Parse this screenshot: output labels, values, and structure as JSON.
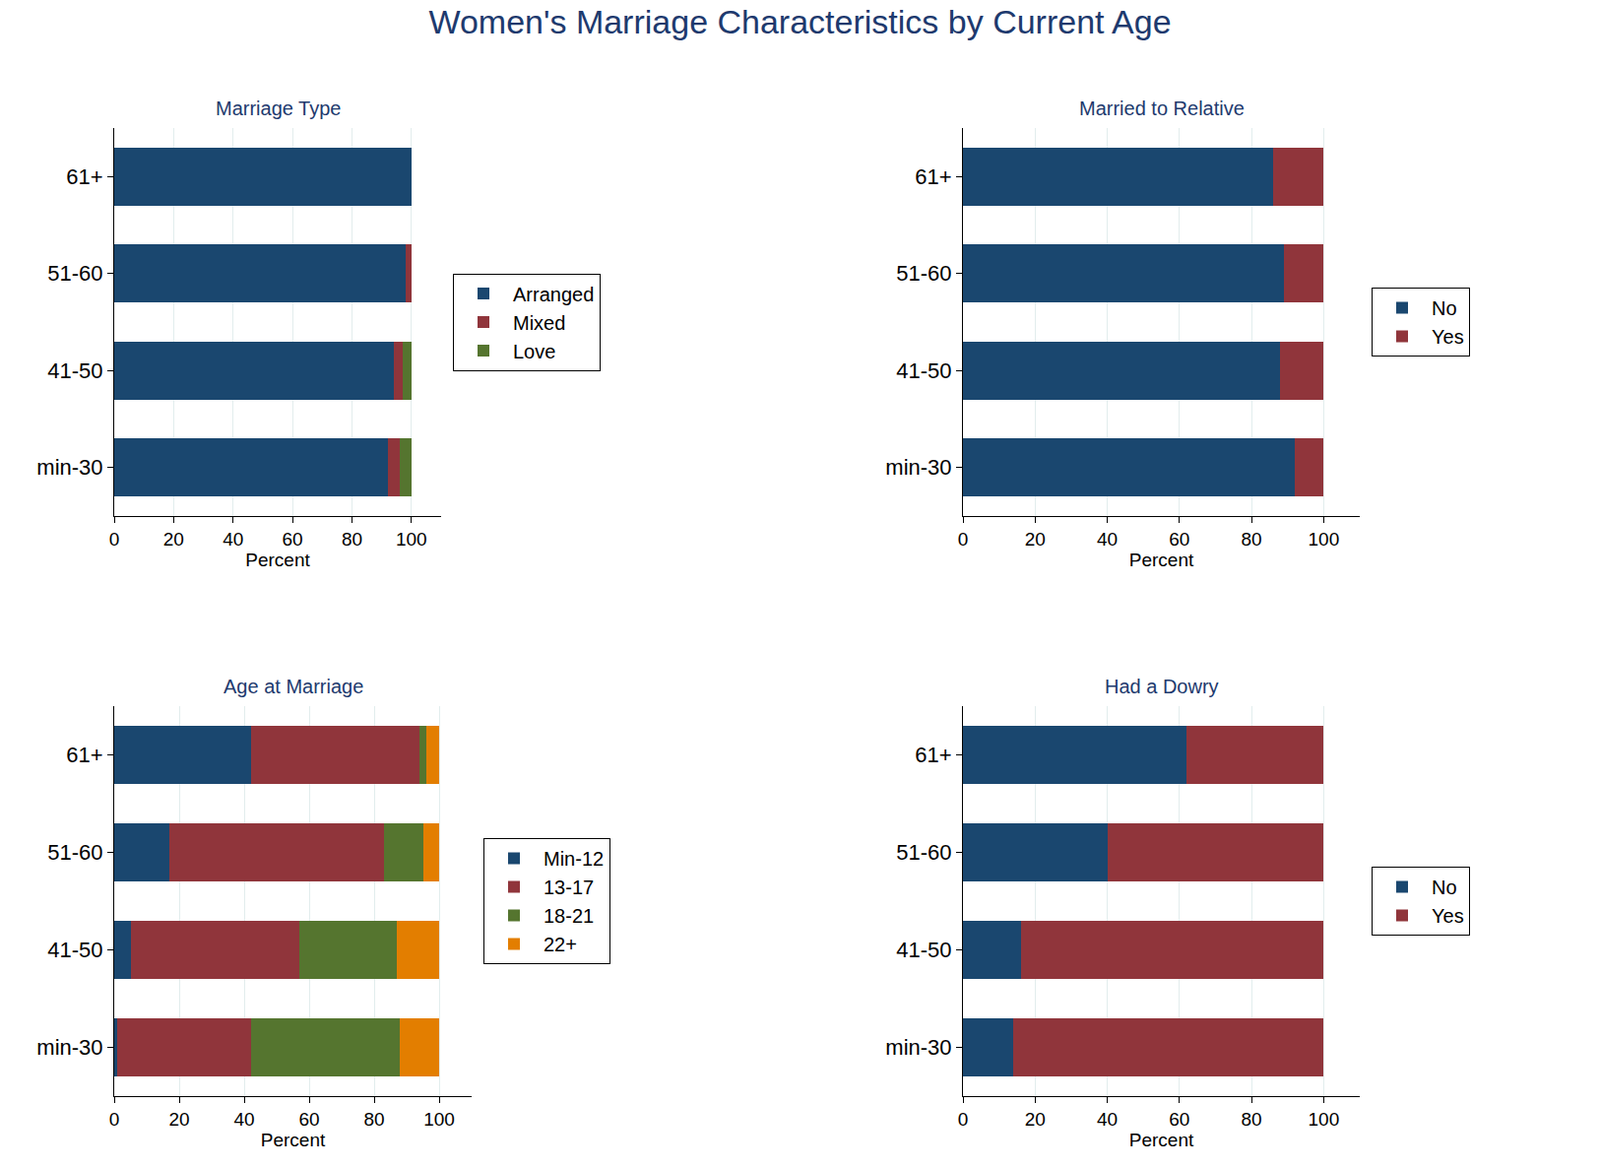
{
  "title": "Women's Marriage Characteristics by Current Age",
  "chart_data": [
    {
      "type": "bar",
      "title": "Marriage Type",
      "orientation": "horizontal",
      "stacked": true,
      "categories": [
        "61+",
        "51-60",
        "41-50",
        "min-30"
      ],
      "series": [
        {
          "name": "Arranged",
          "color": "#1a476f",
          "values": [
            100,
            98,
            94,
            92
          ]
        },
        {
          "name": "Mixed",
          "color": "#90353b",
          "values": [
            0,
            2,
            3,
            4
          ]
        },
        {
          "name": "Love",
          "color": "#55752f",
          "values": [
            0,
            0,
            3,
            4
          ]
        }
      ],
      "xlabel": "Percent",
      "xlim": [
        0,
        110
      ],
      "xticks": [
        0,
        20,
        40,
        60,
        80,
        100
      ],
      "grid": true,
      "legend": "right"
    },
    {
      "type": "bar",
      "title": "Married to Relative",
      "orientation": "horizontal",
      "stacked": true,
      "categories": [
        "61+",
        "51-60",
        "41-50",
        "min-30"
      ],
      "series": [
        {
          "name": "No",
          "color": "#1a476f",
          "values": [
            86,
            89,
            88,
            92
          ]
        },
        {
          "name": "Yes",
          "color": "#90353b",
          "values": [
            14,
            11,
            12,
            8
          ]
        }
      ],
      "xlabel": "Percent",
      "xlim": [
        0,
        110
      ],
      "xticks": [
        0,
        20,
        40,
        60,
        80,
        100
      ],
      "grid": true,
      "legend": "right"
    },
    {
      "type": "bar",
      "title": "Age at Marriage",
      "orientation": "horizontal",
      "stacked": true,
      "categories": [
        "61+",
        "51-60",
        "41-50",
        "min-30"
      ],
      "series": [
        {
          "name": "Min-12",
          "color": "#1a476f",
          "values": [
            42,
            17,
            5,
            1
          ]
        },
        {
          "name": "13-17",
          "color": "#90353b",
          "values": [
            52,
            66,
            52,
            41
          ]
        },
        {
          "name": "18-21",
          "color": "#55752f",
          "values": [
            2,
            12,
            30,
            46
          ]
        },
        {
          "name": "22+",
          "color": "#e37e00",
          "values": [
            4,
            5,
            13,
            12
          ]
        }
      ],
      "xlabel": "Percent",
      "xlim": [
        0,
        110
      ],
      "xticks": [
        0,
        20,
        40,
        60,
        80,
        100
      ],
      "grid": true,
      "legend": "right"
    },
    {
      "type": "bar",
      "title": "Had a Dowry",
      "orientation": "horizontal",
      "stacked": true,
      "categories": [
        "61+",
        "51-60",
        "41-50",
        "min-30"
      ],
      "series": [
        {
          "name": "No",
          "color": "#1a476f",
          "values": [
            62,
            40,
            16,
            14
          ]
        },
        {
          "name": "Yes",
          "color": "#90353b",
          "values": [
            38,
            60,
            84,
            86
          ]
        }
      ],
      "xlabel": "Percent",
      "xlim": [
        0,
        110
      ],
      "xticks": [
        0,
        20,
        40,
        60,
        80,
        100
      ],
      "grid": true,
      "legend": "right"
    }
  ]
}
